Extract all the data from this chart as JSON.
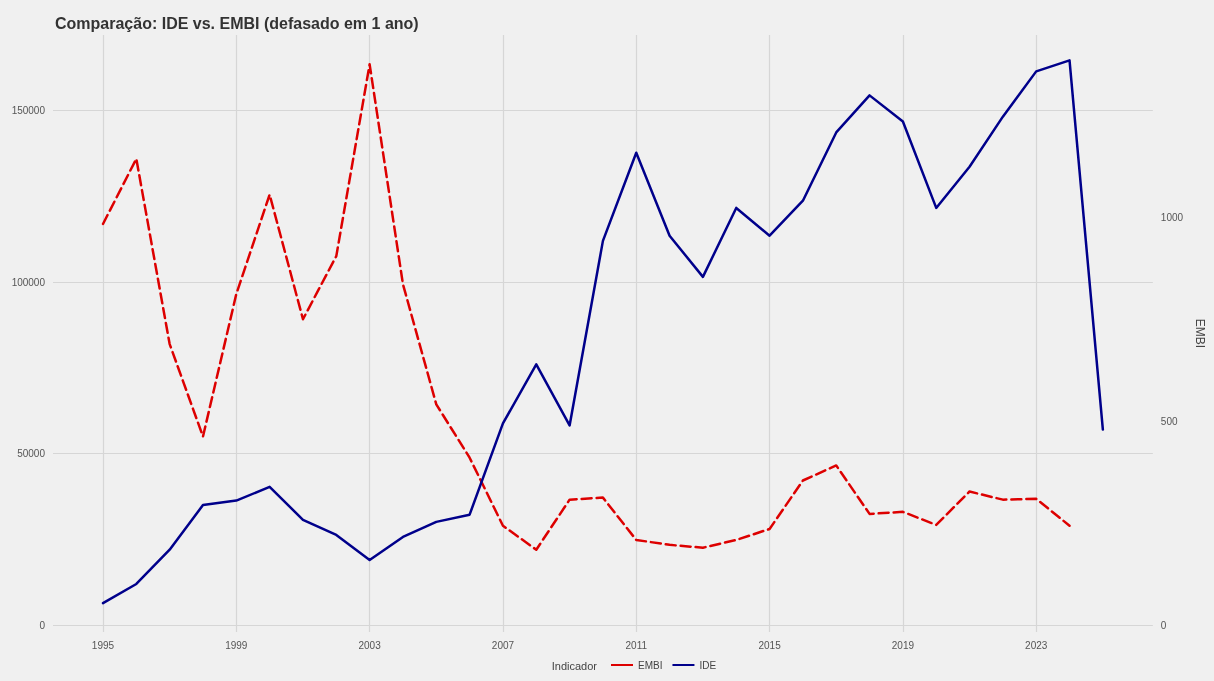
{
  "chart_data": {
    "type": "line",
    "title": "Comparação: IDE vs. EMBI (defasado em 1 ano)",
    "y2label": "EMBI",
    "legend_title": "Indicador",
    "x": [
      1995,
      1996,
      1997,
      1998,
      1999,
      2000,
      2001,
      2002,
      2003,
      2004,
      2005,
      2006,
      2007,
      2008,
      2009,
      2010,
      2011,
      2012,
      2013,
      2014,
      2015,
      2016,
      2017,
      2018,
      2019,
      2020,
      2021,
      2022,
      2023,
      2024,
      2025
    ],
    "series": [
      {
        "name": "EMBI",
        "color": "#dd0000",
        "axis": "y2",
        "line_style": "dashed",
        "values": [
          985,
          1145,
          690,
          463,
          813,
          1057,
          751,
          906,
          1377,
          837,
          542,
          411,
          244,
          185,
          308,
          313,
          209,
          197,
          190,
          209,
          236,
          355,
          392,
          273,
          278,
          246,
          328,
          308,
          310,
          244,
          null
        ]
      },
      {
        "name": "IDE",
        "color": "#00008b",
        "line_style": "solid",
        "values": [
          6400,
          12000,
          22000,
          35000,
          36300,
          40300,
          30700,
          26300,
          19000,
          25700,
          30100,
          32200,
          58800,
          76000,
          58200,
          112000,
          137700,
          113500,
          101500,
          121600,
          113500,
          123700,
          143600,
          154400,
          146800,
          121600,
          133600,
          148200,
          161400,
          164600,
          57000
        ]
      }
    ],
    "xlim": [
      1993.5,
      2026.5
    ],
    "xticks": [
      1995,
      1999,
      2003,
      2007,
      2011,
      2015,
      2019,
      2023
    ],
    "ylim": [
      -2000,
      172000
    ],
    "yticks": [
      0,
      50000,
      100000,
      150000
    ],
    "y2lim": [
      -17,
      1449
    ],
    "y2ticks": [
      0,
      500,
      1000
    ],
    "grid": true,
    "legend": "bottom",
    "marker": "none"
  }
}
